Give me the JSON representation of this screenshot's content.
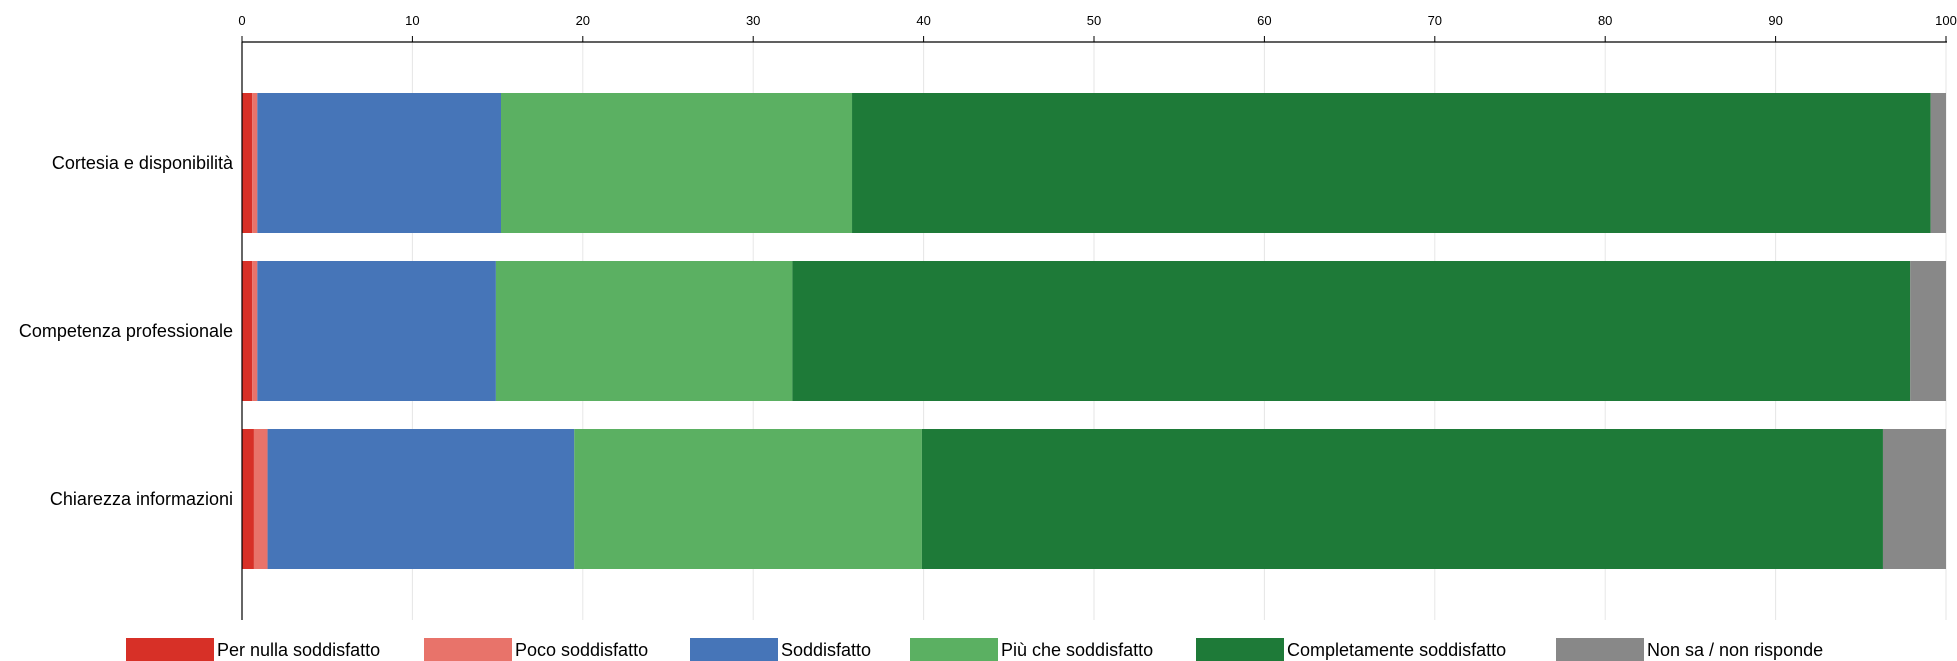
{
  "chart_data": {
    "type": "bar",
    "orientation": "horizontal",
    "stacked": true,
    "xlim": [
      0,
      100
    ],
    "ticks": [
      0,
      10,
      20,
      30,
      40,
      50,
      60,
      70,
      80,
      90,
      100
    ],
    "tick_labels": [
      "0",
      "10",
      "20",
      "30",
      "40",
      "50",
      "60",
      "70",
      "80",
      "90",
      "100"
    ],
    "grid": true,
    "legend_position": "bottom",
    "categories": [
      "Cortesia e disponibilità",
      "Competenza professionale",
      "Chiarezza informazioni"
    ],
    "series": [
      {
        "name": "Per nulla soddisfatto",
        "color": "#d73027",
        "values": [
          0.6,
          0.6,
          0.7
        ]
      },
      {
        "name": "Poco soddisfatto",
        "color": "#e8736a",
        "values": [
          0.3,
          0.3,
          0.8
        ]
      },
      {
        "name": "Soddisfatto",
        "color": "#4675b8",
        "values": [
          14.3,
          14.0,
          18.0
        ]
      },
      {
        "name": "Più che soddisfatto",
        "color": "#5bb062",
        "values": [
          20.6,
          17.4,
          20.4
        ]
      },
      {
        "name": "Completamente soddisfatto",
        "color": "#1e7a38",
        "values": [
          63.3,
          65.6,
          56.4
        ]
      },
      {
        "name": "Non sa / non risponde",
        "color": "#888888",
        "values": [
          0.9,
          2.1,
          3.7
        ]
      }
    ]
  }
}
